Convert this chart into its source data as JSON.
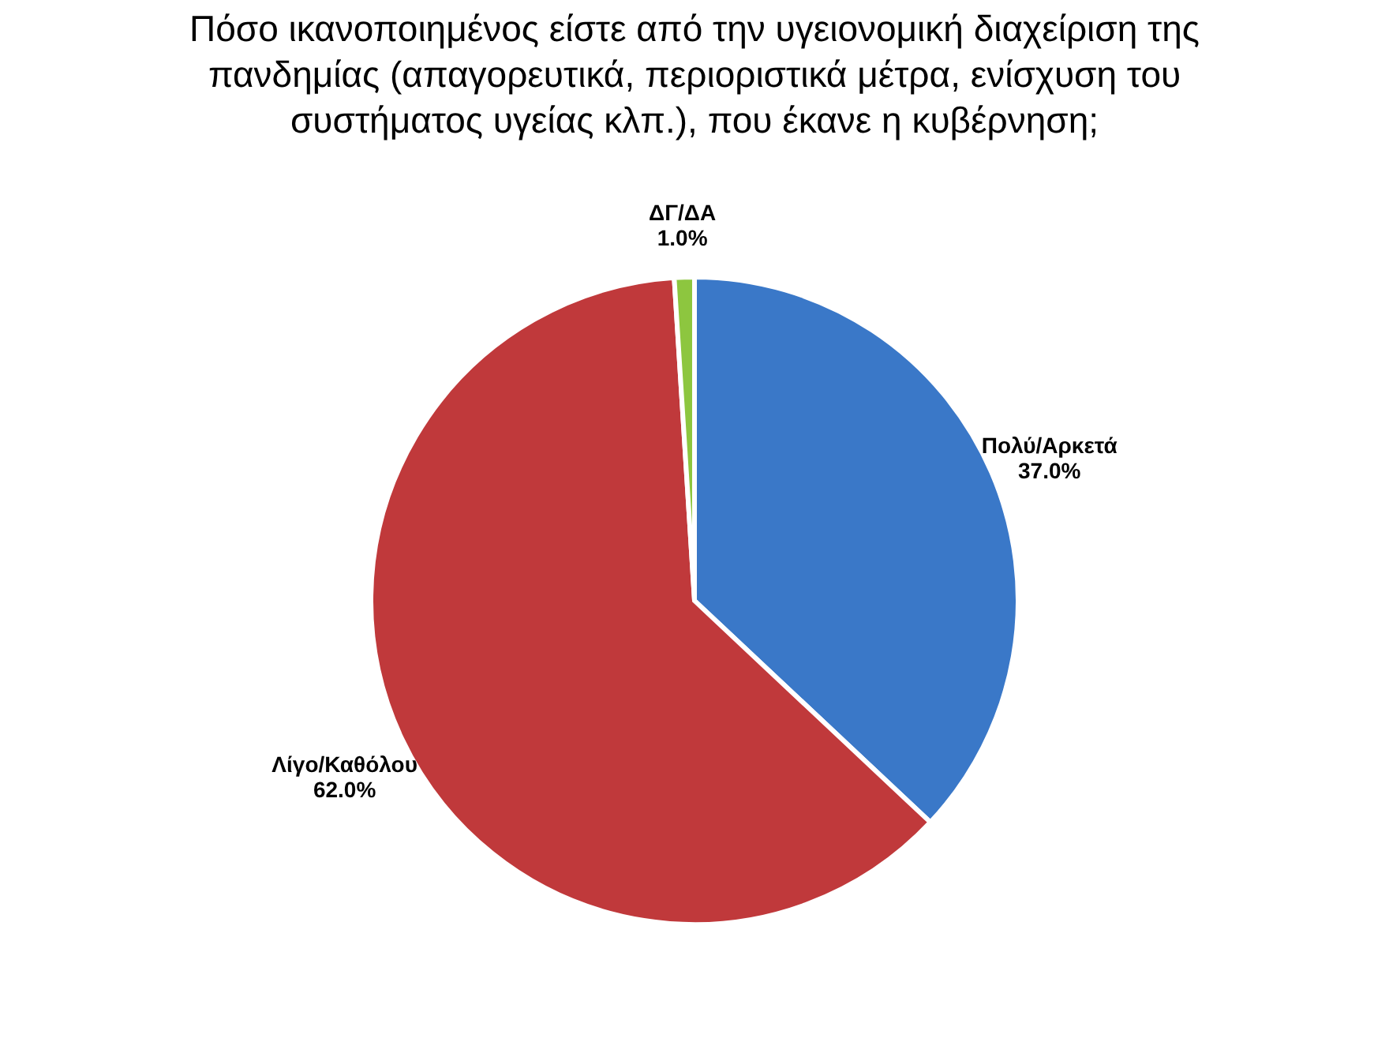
{
  "chart_data": {
    "type": "pie",
    "title": "Πόσο ικανοποιημένος είστε από την υγειονομική διαχείριση της πανδημίας (απαγορευτικά, περιοριστικά μέτρα, ενίσχυση του συστήματος υγείας κλπ.),  που έκανε η κυβέρνηση;",
    "categories": [
      "Πολύ/Αρκετά",
      "Λίγο/Καθόλου",
      "ΔΓ/ΔΑ"
    ],
    "values": [
      37.0,
      62.0,
      1.0
    ],
    "value_labels": [
      "37.0%",
      "62.0%",
      "1.0%"
    ],
    "colors": [
      "#3a78c8",
      "#c0393b",
      "#8dc63f"
    ],
    "legend": false
  }
}
